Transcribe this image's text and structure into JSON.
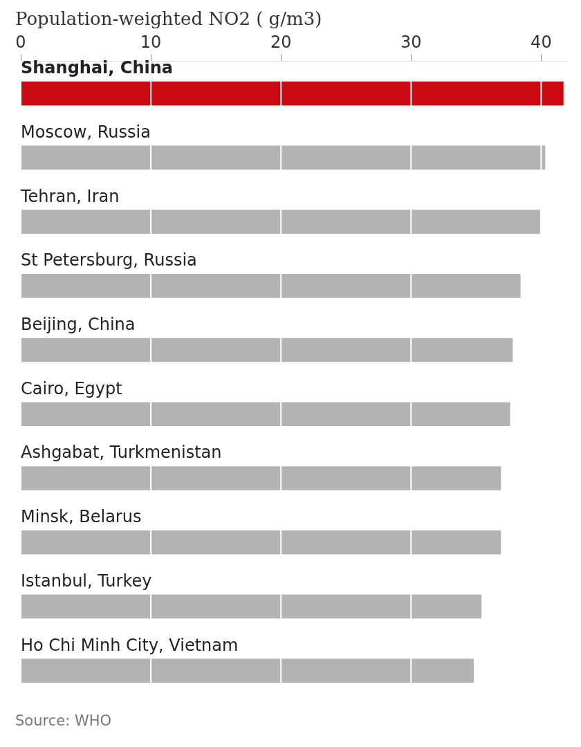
{
  "chart_data": {
    "type": "bar",
    "orientation": "horizontal",
    "title": "Population-weighted NO2 (   g/m3)",
    "categories": [
      "Shanghai, China",
      "Moscow, Russia",
      "Tehran, Iran",
      "St Petersburg, Russia",
      "Beijing, China",
      "Cairo, Egypt",
      "Ashgabat, Turkmenistan",
      "Minsk, Belarus",
      "Istanbul, Turkey",
      "Ho Chi Minh City, Vietnam"
    ],
    "values": [
      41.7,
      40.3,
      39.9,
      38.4,
      37.8,
      37.6,
      36.9,
      36.9,
      35.4,
      34.8
    ],
    "colors": [
      "#cc0a11",
      "#b3b3b3",
      "#b3b3b3",
      "#b3b3b3",
      "#b3b3b3",
      "#b3b3b3",
      "#b3b3b3",
      "#b3b3b3",
      "#b3b3b3",
      "#b3b3b3"
    ],
    "xlim": [
      0,
      42
    ],
    "xticks": [
      0,
      10,
      20,
      30,
      40
    ],
    "grid": "x",
    "annotations": [
      "Source: WHO"
    ]
  }
}
